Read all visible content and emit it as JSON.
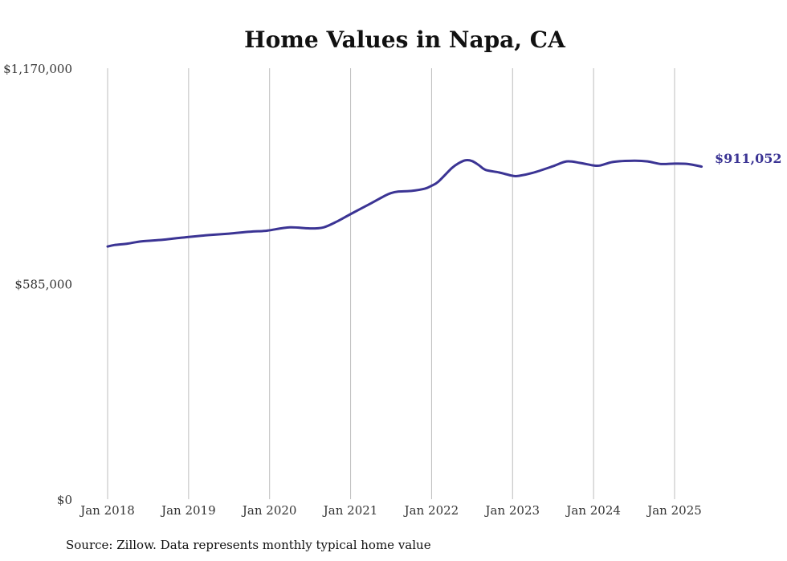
{
  "chart_data": {
    "type": "line",
    "title": "Home Values in Napa, CA",
    "xlabel": "",
    "ylabel": "",
    "ylim": [
      0,
      1170000
    ],
    "y_ticks": [
      {
        "value": 1170000,
        "label": "$1,170,000"
      },
      {
        "value": 585000,
        "label": "$585,000"
      },
      {
        "value": 0,
        "label": "$0"
      }
    ],
    "x_ticks": [
      {
        "value": 2018.0,
        "label": "Jan 2018"
      },
      {
        "value": 2019.0,
        "label": "Jan 2019"
      },
      {
        "value": 2020.0,
        "label": "Jan 2020"
      },
      {
        "value": 2021.0,
        "label": "Jan 2021"
      },
      {
        "value": 2022.0,
        "label": "Jan 2022"
      },
      {
        "value": 2023.0,
        "label": "Jan 2023"
      },
      {
        "value": 2024.0,
        "label": "Jan 2024"
      },
      {
        "value": 2025.0,
        "label": "Jan 2025"
      }
    ],
    "grid": "vertical",
    "line_color": "#3b3494",
    "series": [
      {
        "x": [
          2018.0,
          2018.083,
          2018.25,
          2018.417,
          2018.667,
          2018.833,
          2019.0,
          2019.25,
          2019.5,
          2019.75,
          2019.917,
          2020.0,
          2020.25,
          2020.5,
          2020.667,
          2020.833,
          2021.0,
          2021.25,
          2021.417,
          2021.5,
          2021.583,
          2021.75,
          2021.917,
          2022.0,
          2022.083,
          2022.25,
          2022.333,
          2022.417,
          2022.5,
          2022.583,
          2022.667,
          2022.833,
          2023.0,
          2023.083,
          2023.25,
          2023.5,
          2023.667,
          2023.833,
          2024.0,
          2024.083,
          2024.25,
          2024.5,
          2024.667,
          2024.833,
          2025.0,
          2025.167,
          2025.333
        ],
        "y": [
          686000,
          690000,
          694000,
          700000,
          704000,
          708000,
          712000,
          717000,
          721000,
          726000,
          728000,
          730000,
          738000,
          735000,
          738000,
          754000,
          774000,
          803000,
          823000,
          831000,
          835000,
          837000,
          843000,
          851000,
          862000,
          899000,
          912000,
          920000,
          918000,
          907000,
          894000,
          887000,
          878000,
          878000,
          886000,
          904000,
          917000,
          913000,
          906000,
          906000,
          916000,
          919000,
          917000,
          910000,
          911000,
          910000,
          903000
        ]
      }
    ],
    "end_value_label": "$911,052"
  },
  "footer": {
    "source": "Source: Zillow. Data represents monthly typical home value"
  }
}
